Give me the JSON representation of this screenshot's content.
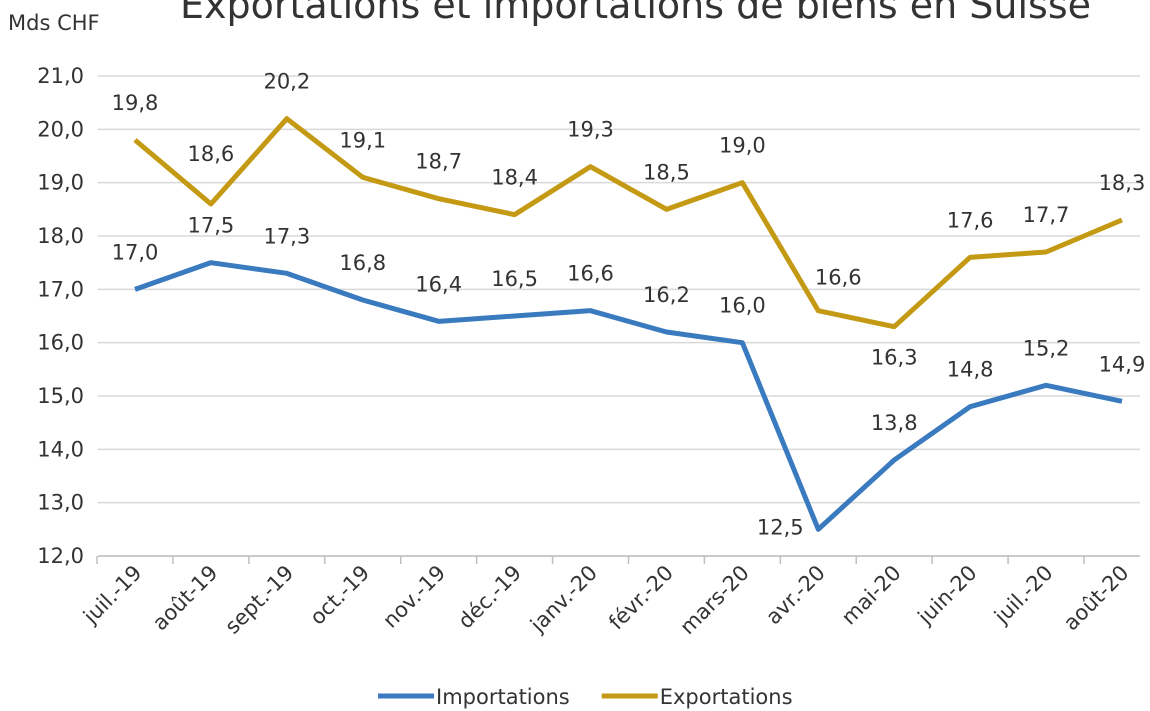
{
  "chart_data": {
    "type": "line",
    "title": "Exportations et importations de biens en Suisse",
    "y_axis_label": "Mds CHF",
    "categories": [
      "juil.-19",
      "août-19",
      "sept.-19",
      "oct.-19",
      "nov.-19",
      "déc.-19",
      "janv.-20",
      "févr.-20",
      "mars-20",
      "avr.-20",
      "mai-20",
      "juin-20",
      "juil.-20",
      "août-20"
    ],
    "series": [
      {
        "name": "Importations",
        "color": "#3a7abf",
        "values": [
          17.0,
          17.5,
          17.3,
          16.8,
          16.4,
          16.5,
          16.6,
          16.2,
          16.0,
          12.5,
          13.8,
          14.8,
          15.2,
          14.9
        ],
        "value_labels": [
          "17,0",
          "17,5",
          "17,3",
          "16,8",
          "16,4",
          "16,5",
          "16,6",
          "16,2",
          "16,0",
          "12,5",
          "13,8",
          "14,8",
          "15,2",
          "14,9"
        ]
      },
      {
        "name": "Exportations",
        "color": "#c49a14",
        "values": [
          19.8,
          18.6,
          20.2,
          19.1,
          18.7,
          18.4,
          19.3,
          18.5,
          19.0,
          16.6,
          16.3,
          17.6,
          17.7,
          18.3
        ],
        "value_labels": [
          "19,8",
          "18,6",
          "20,2",
          "19,1",
          "18,7",
          "18,4",
          "19,3",
          "18,5",
          "19,0",
          "16,6",
          "16,3",
          "17,6",
          "17,7",
          "18,3"
        ]
      }
    ],
    "ylim": [
      12,
      21
    ],
    "yticks": [
      {
        "value": 12,
        "label": "12,0"
      },
      {
        "value": 13,
        "label": "13,0"
      },
      {
        "value": 14,
        "label": "14,0"
      },
      {
        "value": 15,
        "label": "15,0"
      },
      {
        "value": 16,
        "label": "16,0"
      },
      {
        "value": 17,
        "label": "17,0"
      },
      {
        "value": 18,
        "label": "18,0"
      },
      {
        "value": 19,
        "label": "19,0"
      },
      {
        "value": 20,
        "label": "20,0"
      },
      {
        "value": 21,
        "label": "21,0"
      }
    ],
    "grid": true,
    "legend": "bottom"
  }
}
